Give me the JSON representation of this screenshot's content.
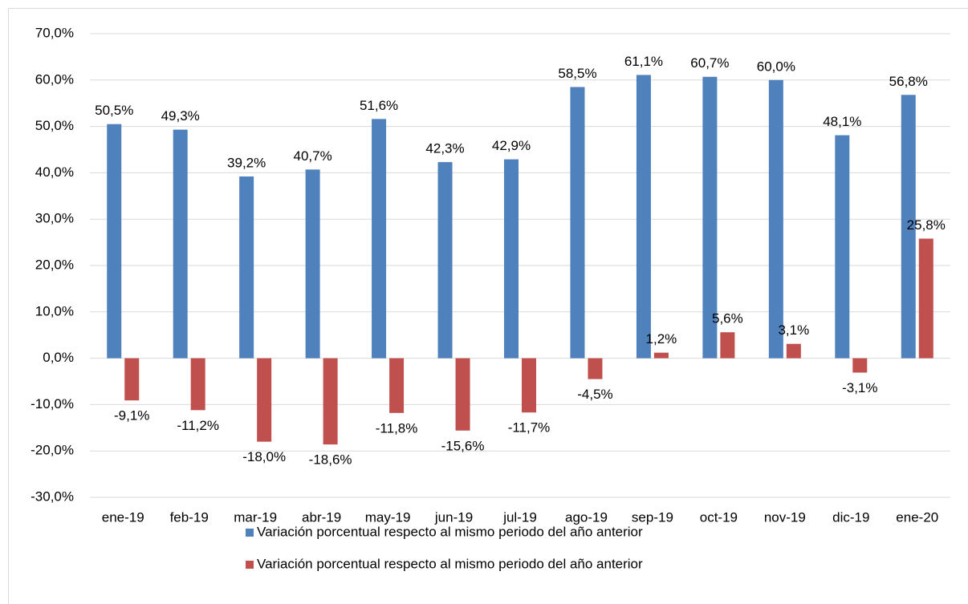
{
  "chart_data": {
    "type": "bar",
    "categories": [
      "ene-19",
      "feb-19",
      "mar-19",
      "abr-19",
      "may-19",
      "jun-19",
      "jul-19",
      "ago-19",
      "sep-19",
      "oct-19",
      "nov-19",
      "dic-19",
      "ene-20"
    ],
    "series": [
      {
        "name": "Variación porcentual respecto al mismo periodo del año anterior",
        "color": "#4f81bd",
        "values": [
          50.5,
          49.3,
          39.2,
          40.7,
          51.6,
          42.3,
          42.9,
          58.5,
          61.1,
          60.7,
          60.0,
          48.1,
          56.8
        ],
        "value_labels": [
          "50,5%",
          "49,3%",
          "39,2%",
          "40,7%",
          "51,6%",
          "42,3%",
          "42,9%",
          "58,5%",
          "61,1%",
          "60,7%",
          "60,0%",
          "48,1%",
          "56,8%"
        ]
      },
      {
        "name": "Variación porcentual respecto al mismo periodo del año anterior",
        "color": "#c0504d",
        "values": [
          -9.1,
          -11.2,
          -18.0,
          -18.6,
          -11.8,
          -15.6,
          -11.7,
          -4.5,
          1.2,
          5.6,
          3.1,
          -3.1,
          25.8
        ],
        "value_labels": [
          "-9,1%",
          "-11,2%",
          "-18,0%",
          "-18,6%",
          "-11,8%",
          "-15,6%",
          "-11,7%",
          "-4,5%",
          "1,2%",
          "5,6%",
          "3,1%",
          "-3,1%",
          "25,8%"
        ]
      }
    ],
    "ylim": [
      -30,
      70
    ],
    "yticks": [
      {
        "value": -30,
        "label": "-30,0%"
      },
      {
        "value": -20,
        "label": "-20,0%"
      },
      {
        "value": -10,
        "label": "-10,0%"
      },
      {
        "value": 0,
        "label": "0,0%"
      },
      {
        "value": 10,
        "label": "10,0%"
      },
      {
        "value": 20,
        "label": "20,0%"
      },
      {
        "value": 30,
        "label": "30,0%"
      },
      {
        "value": 40,
        "label": "40,0%"
      },
      {
        "value": 50,
        "label": "50,0%"
      },
      {
        "value": 60,
        "label": "60,0%"
      },
      {
        "value": 70,
        "label": "70,0%"
      }
    ],
    "grid": true,
    "legend": "bottom"
  }
}
